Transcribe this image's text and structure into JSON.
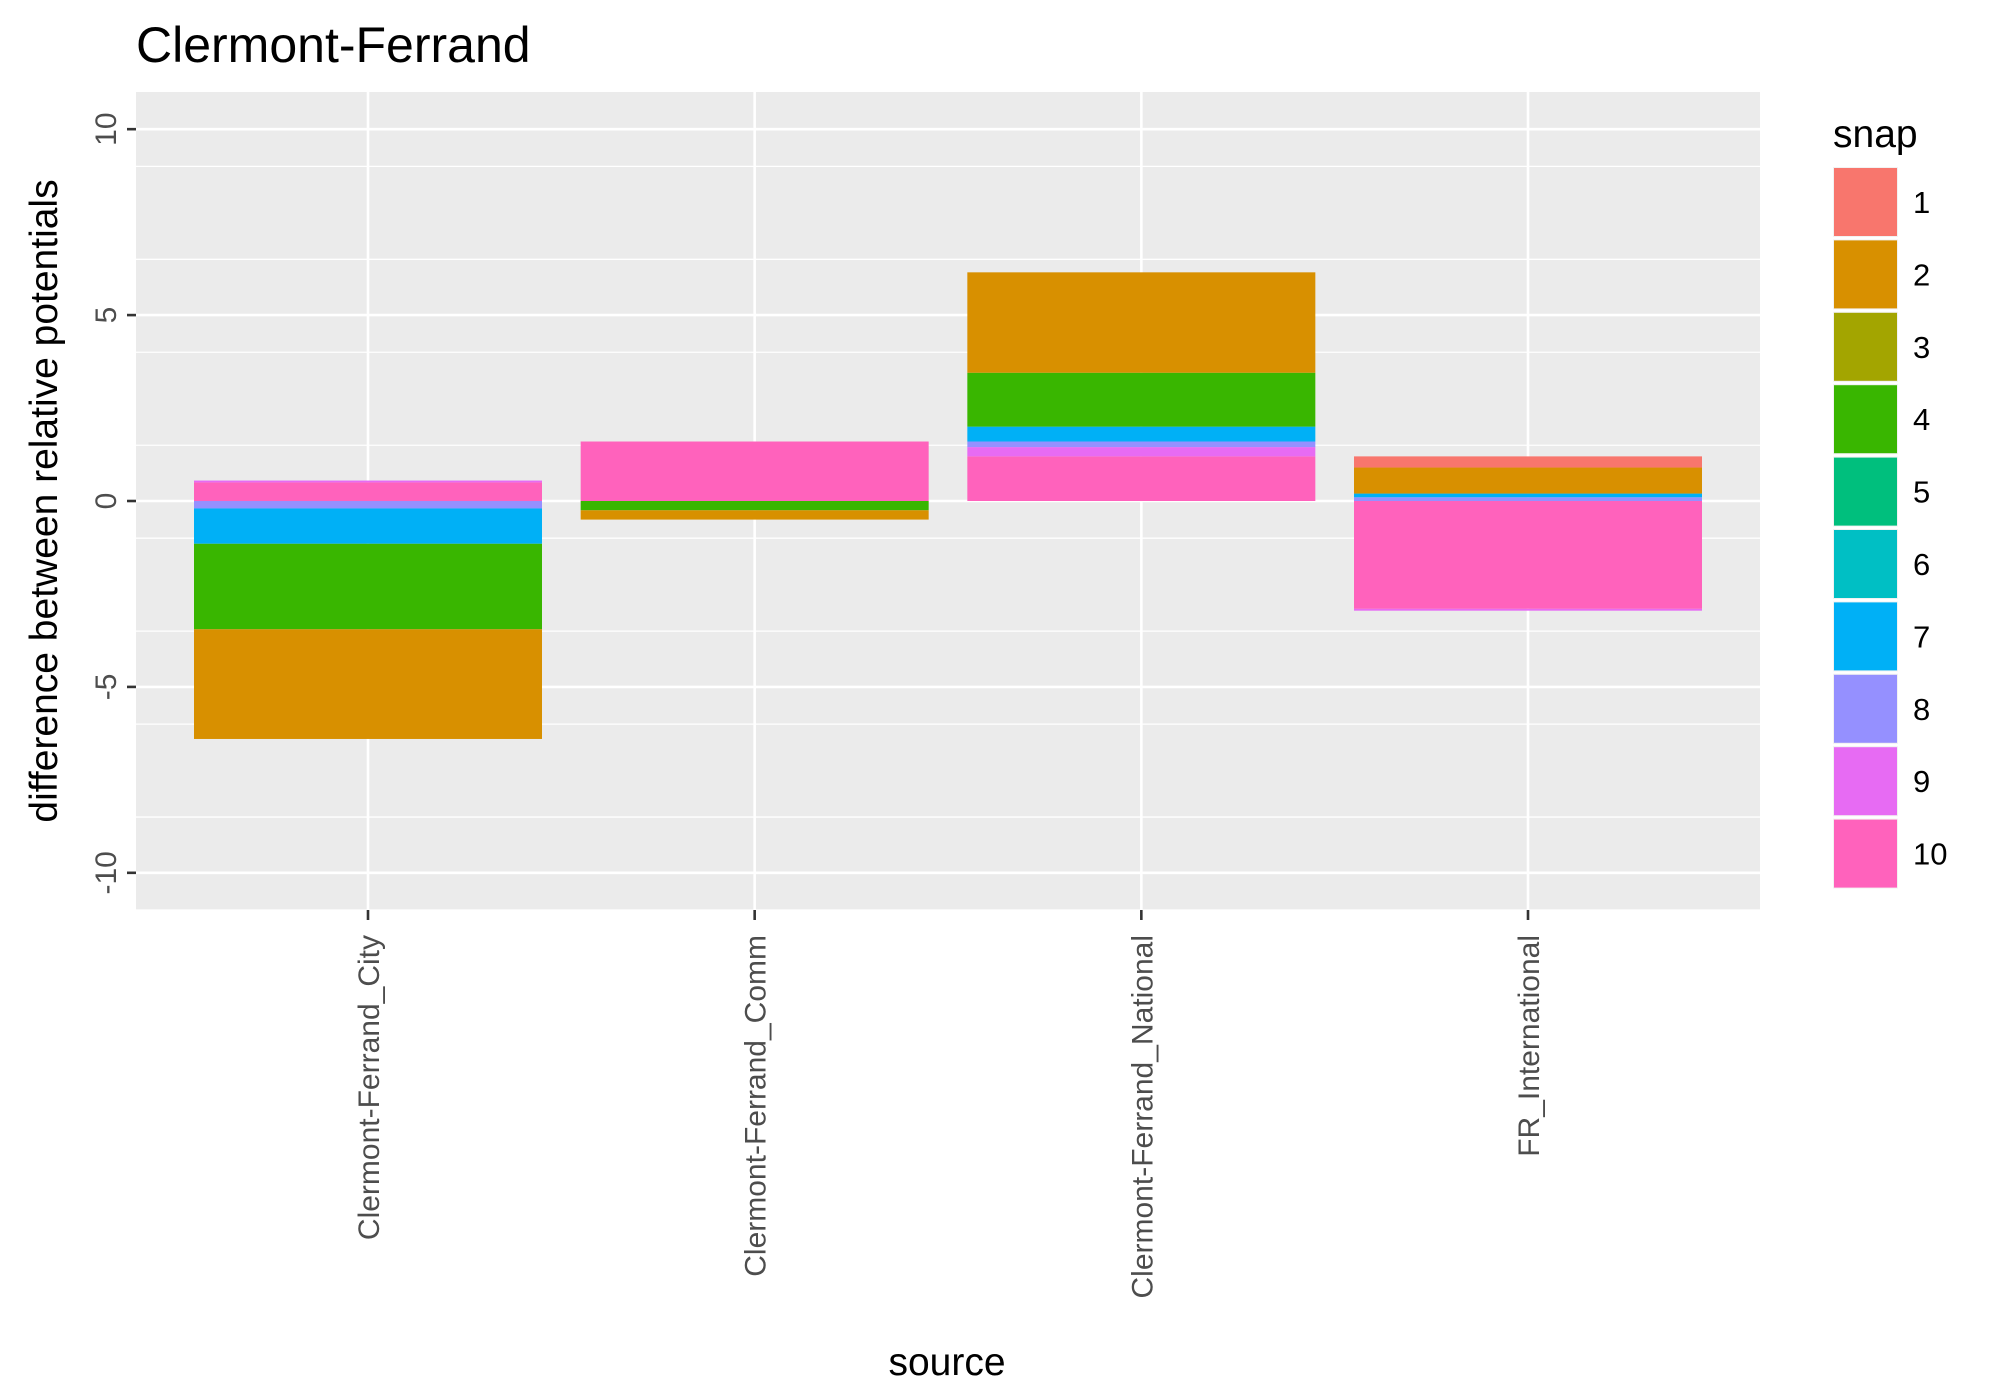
{
  "chart_data": {
    "type": "bar",
    "stacked": true,
    "title": "Clermont-Ferrand",
    "xlabel": "source",
    "ylabel": "difference between relative potentials",
    "ylim": [
      -11,
      11
    ],
    "yticks": [
      -10,
      -5,
      0,
      5,
      10
    ],
    "grid": true,
    "categories": [
      "Clermont-Ferrand_City",
      "Clermont-Ferrand_Comm",
      "Clermont-Ferrand_National",
      "FR_International"
    ],
    "legend": {
      "title": "snap",
      "position": "right",
      "entries": [
        {
          "label": "1",
          "color": "#F8766D"
        },
        {
          "label": "2",
          "color": "#D89000"
        },
        {
          "label": "3",
          "color": "#A3A500"
        },
        {
          "label": "4",
          "color": "#39B600"
        },
        {
          "label": "5",
          "color": "#00BF7D"
        },
        {
          "label": "6",
          "color": "#00BFC4"
        },
        {
          "label": "7",
          "color": "#00B0F6"
        },
        {
          "label": "8",
          "color": "#9590FF"
        },
        {
          "label": "9",
          "color": "#E76BF3"
        },
        {
          "label": "10",
          "color": "#FF62BC"
        }
      ]
    },
    "series": [
      {
        "name": "1",
        "values": [
          0.0,
          0.0,
          0.0,
          0.3
        ]
      },
      {
        "name": "2",
        "values": [
          -2.95,
          -0.25,
          2.7,
          0.7
        ]
      },
      {
        "name": "3",
        "values": [
          0.0,
          0.0,
          0.0,
          0.0
        ]
      },
      {
        "name": "4",
        "values": [
          -2.3,
          -0.25,
          1.45,
          0.0
        ]
      },
      {
        "name": "5",
        "values": [
          0.0,
          0.0,
          0.0,
          0.0
        ]
      },
      {
        "name": "6",
        "values": [
          0.0,
          0.0,
          0.0,
          0.0
        ]
      },
      {
        "name": "7",
        "values": [
          -0.95,
          0.0,
          0.4,
          0.1
        ]
      },
      {
        "name": "8",
        "values": [
          -0.2,
          0.0,
          0.15,
          0.1
        ]
      },
      {
        "name": "9",
        "values": [
          0.05,
          0.0,
          0.25,
          -0.05
        ]
      },
      {
        "name": "10",
        "values": [
          0.5,
          1.6,
          1.2,
          -2.9
        ]
      }
    ]
  }
}
